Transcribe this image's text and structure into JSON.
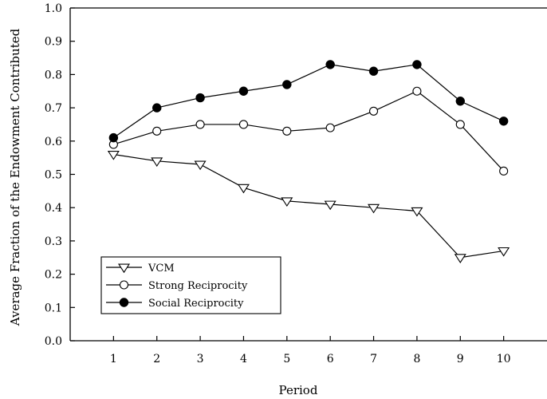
{
  "chart_data": {
    "type": "line",
    "xlabel": "Period",
    "ylabel": "Average Fraction of the Endowment Contributed",
    "x": [
      1,
      2,
      3,
      4,
      5,
      6,
      7,
      8,
      9,
      10
    ],
    "xlim": [
      0,
      11
    ],
    "ylim": [
      0,
      1
    ],
    "xticks": [
      "1",
      "2",
      "3",
      "4",
      "5",
      "6",
      "7",
      "8",
      "9",
      "10"
    ],
    "yticks": [
      "0.0",
      "0.1",
      "0.2",
      "0.3",
      "0.4",
      "0.5",
      "0.6",
      "0.7",
      "0.8",
      "0.9",
      "1.0"
    ],
    "grid": false,
    "legend_position": "bottom-left",
    "series": [
      {
        "name": "VCM",
        "marker": "open-down-triangle",
        "values": [
          0.56,
          0.54,
          0.53,
          0.46,
          0.42,
          0.41,
          0.4,
          0.39,
          0.25,
          0.27
        ]
      },
      {
        "name": "Strong Reciprocity",
        "marker": "open-circle",
        "values": [
          0.59,
          0.63,
          0.65,
          0.65,
          0.63,
          0.64,
          0.69,
          0.75,
          0.65,
          0.51
        ]
      },
      {
        "name": "Social Reciprocity",
        "marker": "filled-circle",
        "values": [
          0.61,
          0.7,
          0.73,
          0.75,
          0.77,
          0.83,
          0.81,
          0.83,
          0.72,
          0.66
        ]
      }
    ],
    "colors": {
      "line": "#000000",
      "background": "#ffffff"
    }
  }
}
